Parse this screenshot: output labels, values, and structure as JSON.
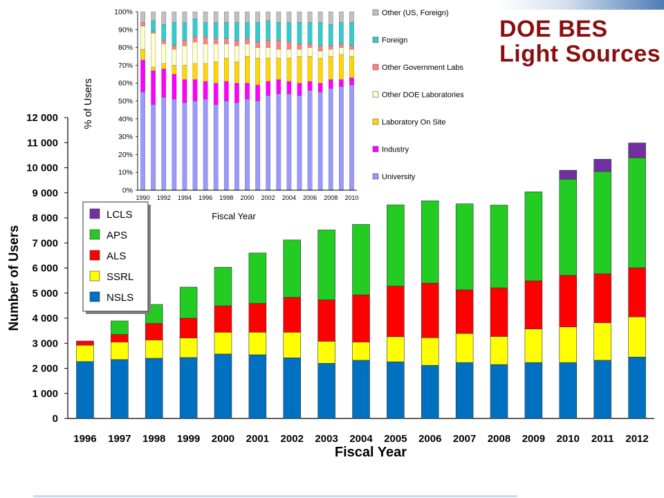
{
  "header": {
    "title_line1": "DOE BES",
    "title_line2": "Light Sources"
  },
  "colors": {
    "NSLS": "#0070c0",
    "SSRL": "#ffff00",
    "ALS": "#ff0000",
    "APS": "#22cc22",
    "LCLS": "#7030a0",
    "University": "#9999ff",
    "Industry": "#ff00ff",
    "Laboratory On Site": "#ffd700",
    "Other DOE Laboratories": "#ffffcc",
    "Other Government Labs": "#ff8080",
    "Foreign": "#33cccc",
    "Other (US, Foreign)": "#c0c0c0",
    "title": "#8b0f0f"
  },
  "chart_data": [
    {
      "type": "bar",
      "stacked": true,
      "title": "",
      "xlabel": "Fiscal Year",
      "ylabel": "Number of Users",
      "ylim": [
        0,
        12000
      ],
      "yticks": [
        0,
        1000,
        2000,
        3000,
        4000,
        5000,
        6000,
        7000,
        8000,
        9000,
        10000,
        11000,
        12000
      ],
      "ytick_labels": [
        "0",
        "1 000",
        "2 000",
        "3 000",
        "4 000",
        "5 000",
        "6 000",
        "7 000",
        "8 000",
        "9 000",
        "10 000",
        "11 000",
        "12 000"
      ],
      "categories": [
        "1996",
        "1997",
        "1998",
        "1999",
        "2000",
        "2001",
        "2002",
        "2003",
        "2004",
        "2005",
        "2006",
        "2007",
        "2008",
        "2009",
        "2010",
        "2011",
        "2012"
      ],
      "series": [
        {
          "name": "NSLS",
          "values": [
            2270,
            2350,
            2400,
            2430,
            2570,
            2540,
            2420,
            2200,
            2320,
            2260,
            2120,
            2230,
            2150,
            2230,
            2230,
            2320,
            2450
          ]
        },
        {
          "name": "SSRL",
          "values": [
            650,
            700,
            730,
            780,
            870,
            900,
            1020,
            880,
            730,
            1000,
            1100,
            1160,
            1120,
            1340,
            1420,
            1500,
            1600
          ]
        },
        {
          "name": "ALS",
          "values": [
            170,
            300,
            660,
            790,
            1050,
            1150,
            1390,
            1650,
            1880,
            2020,
            2180,
            1740,
            1940,
            1920,
            2060,
            1950,
            1960
          ]
        },
        {
          "name": "APS",
          "values": [
            0,
            540,
            760,
            1240,
            1540,
            2010,
            2290,
            2790,
            2810,
            3240,
            3280,
            3430,
            3300,
            3550,
            3830,
            4080,
            4390
          ]
        },
        {
          "name": "LCLS",
          "values": [
            0,
            0,
            0,
            0,
            0,
            0,
            0,
            0,
            0,
            0,
            0,
            0,
            0,
            0,
            360,
            490,
            590
          ]
        }
      ],
      "legend": [
        "LCLS",
        "APS",
        "ALS",
        "SSRL",
        "NSLS"
      ],
      "legend_position": "left, inside plot"
    },
    {
      "type": "bar",
      "stacked": true,
      "title": "",
      "xlabel": "Fiscal Year",
      "ylabel": "% of Users",
      "ylim": [
        0,
        100
      ],
      "yticks": [
        0,
        10,
        20,
        30,
        40,
        50,
        60,
        70,
        80,
        90,
        100
      ],
      "ytick_labels": [
        "0%",
        "10%",
        "20%",
        "30%",
        "40%",
        "50%",
        "60%",
        "70%",
        "80%",
        "90%",
        "100%"
      ],
      "categories": [
        "1990",
        "1991",
        "1992",
        "1993",
        "1994",
        "1995",
        "1996",
        "1997",
        "1998",
        "1999",
        "2000",
        "2001",
        "2002",
        "2003",
        "2004",
        "2005",
        "2006",
        "2007",
        "2008",
        "2009",
        "2010"
      ],
      "xtick_labels_shown": [
        "1990",
        "1992",
        "1994",
        "1996",
        "1998",
        "2000",
        "2002",
        "2004",
        "2006",
        "2008",
        "2010"
      ],
      "series": [
        {
          "name": "University",
          "values": [
            55,
            48,
            52,
            51,
            49,
            50,
            51,
            48,
            50,
            49,
            51,
            50,
            53,
            54,
            54,
            53,
            56,
            55,
            57,
            58,
            59
          ]
        },
        {
          "name": "Industry",
          "values": [
            18,
            19,
            16,
            14,
            13,
            12,
            10,
            12,
            11,
            11,
            9,
            9,
            8,
            8,
            7,
            7,
            5,
            5,
            5,
            4,
            4
          ]
        },
        {
          "name": "Laboratory On Site",
          "values": [
            6,
            2,
            3,
            5,
            8,
            9,
            10,
            12,
            13,
            12,
            15,
            15,
            13,
            12,
            13,
            15,
            14,
            14,
            13,
            14,
            12
          ]
        },
        {
          "name": "Other DOE Laboratories",
          "values": [
            13,
            19,
            11,
            9,
            11,
            12,
            11,
            10,
            8,
            9,
            7,
            6,
            6,
            5,
            5,
            4,
            5,
            4,
            4,
            4,
            4
          ]
        },
        {
          "name": "Other Government Labs",
          "values": [
            2,
            1,
            2,
            2,
            3,
            3,
            4,
            3,
            3,
            3,
            3,
            3,
            4,
            5,
            4,
            3,
            2,
            3,
            2,
            2,
            2
          ]
        },
        {
          "name": "Foreign",
          "values": [
            0,
            6,
            9,
            13,
            10,
            10,
            8,
            9,
            9,
            10,
            9,
            11,
            11,
            10,
            11,
            12,
            12,
            13,
            12,
            12,
            13
          ]
        },
        {
          "name": "Other (US, Foreign)",
          "values": [
            6,
            5,
            7,
            6,
            6,
            4,
            6,
            6,
            6,
            6,
            6,
            6,
            5,
            6,
            6,
            6,
            6,
            6,
            7,
            6,
            6
          ]
        }
      ],
      "legend": [
        "Other (US, Foreign)",
        "Foreign",
        "Other Government Labs",
        "Other DOE Laboratories",
        "Laboratory On Site",
        "Industry",
        "University"
      ],
      "legend_position": "right"
    }
  ]
}
